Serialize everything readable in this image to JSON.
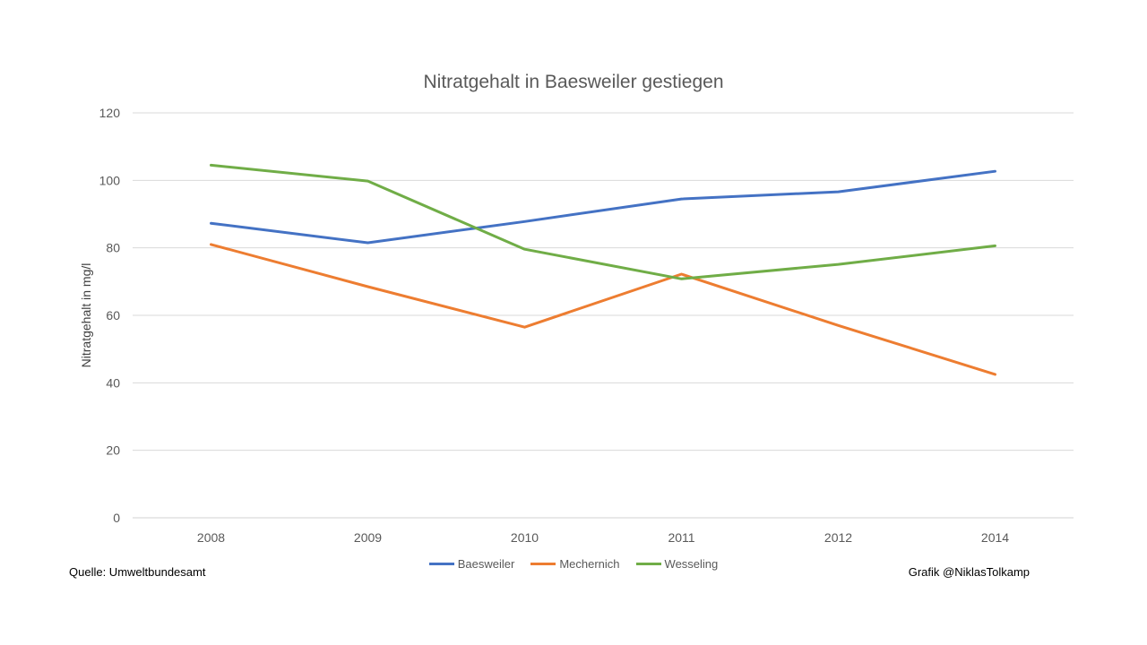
{
  "chart_data": {
    "type": "line",
    "title": "Nitratgehalt in Baesweiler gestiegen",
    "ylabel": "Nitratgehalt in mg/l",
    "xlabel": "",
    "categories": [
      "2008",
      "2009",
      "2010",
      "2011",
      "2012",
      "2014"
    ],
    "ylim": [
      0,
      120
    ],
    "yticks": [
      0,
      20,
      40,
      60,
      80,
      100,
      120
    ],
    "grid": true,
    "legend_position": "bottom",
    "series": [
      {
        "name": "Baesweiler",
        "color": "#4472C4",
        "values": [
          87.3,
          81.5,
          87.8,
          94.5,
          96.6,
          102.7
        ]
      },
      {
        "name": "Mechernich",
        "color": "#ED7D31",
        "values": [
          81.0,
          68.5,
          56.5,
          72.2,
          57.0,
          42.5
        ]
      },
      {
        "name": "Wesseling",
        "color": "#70AD47",
        "values": [
          104.5,
          99.8,
          79.6,
          70.8,
          75.1,
          80.6
        ]
      }
    ]
  },
  "footer": {
    "source": "Quelle: Umweltbundesamt",
    "credit": "Grafik @NiklasTolkamp"
  }
}
